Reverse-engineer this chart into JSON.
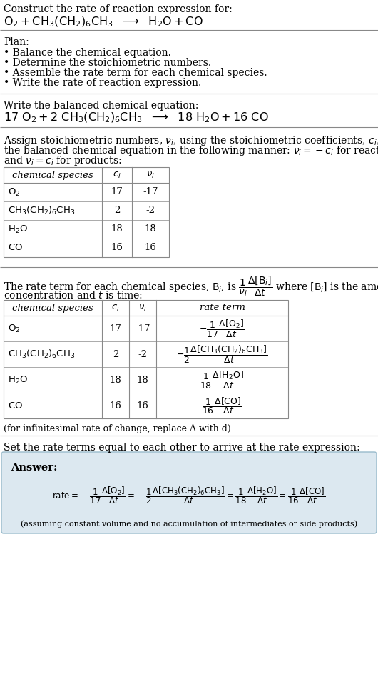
{
  "title_line1": "Construct the rate of reaction expression for:",
  "plan_header": "Plan:",
  "plan_items": [
    "• Balance the chemical equation.",
    "• Determine the stoichiometric numbers.",
    "• Assemble the rate term for each chemical species.",
    "• Write the rate of reaction expression."
  ],
  "balanced_header": "Write the balanced chemical equation:",
  "table1_headers": [
    "chemical species",
    "c_i",
    "v_i"
  ],
  "table1_species": [
    "O_2",
    "CH_3(CH_2)_6CH_3",
    "H_2O",
    "CO"
  ],
  "table1_ci": [
    "17",
    "2",
    "18",
    "16"
  ],
  "table1_vi": [
    "-17",
    "-2",
    "18",
    "16"
  ],
  "table2_headers": [
    "chemical species",
    "c_i",
    "v_i",
    "rate term"
  ],
  "table2_species": [
    "O_2",
    "CH_3(CH_2)_6CH_3",
    "H_2O",
    "CO"
  ],
  "table2_ci": [
    "17",
    "2",
    "18",
    "16"
  ],
  "table2_vi": [
    "-17",
    "-2",
    "18",
    "16"
  ],
  "infinitesimal_note": "(for infinitesimal rate of change, replace Δ with d)",
  "set_equal_text": "Set the rate terms equal to each other to arrive at the rate expression:",
  "answer_label": "Answer:",
  "assuming_note": "(assuming constant volume and no accumulation of intermediates or side products)",
  "answer_box_bg": "#dce8f0",
  "bg_color": "#ffffff",
  "text_color": "#000000",
  "line_color": "#888888"
}
